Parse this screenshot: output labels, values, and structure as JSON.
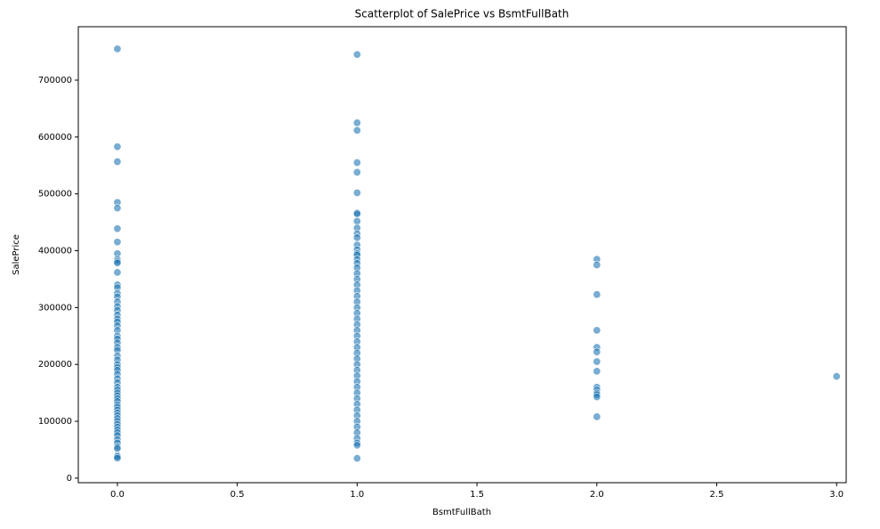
{
  "chart_data": {
    "type": "scatter",
    "title": "Scatterplot of SalePrice vs BsmtFullBath",
    "x_label": "BsmtFullBath",
    "y_label": "SalePrice",
    "color": "#1f77b4",
    "xlim": [
      -0.163,
      3.04
    ],
    "ylim": [
      -8000,
      794000
    ],
    "xticks": [
      {
        "value": 0,
        "label": "0.0"
      },
      {
        "value": 0.5,
        "label": "0.5"
      },
      {
        "value": 1,
        "label": "1.0"
      },
      {
        "value": 1.5,
        "label": "1.5"
      },
      {
        "value": 2,
        "label": "2.0"
      },
      {
        "value": 2.5,
        "label": "2.5"
      },
      {
        "value": 3,
        "label": "3.0"
      }
    ],
    "yticks": [
      0,
      100000,
      200000,
      300000,
      400000,
      500000,
      600000,
      700000
    ],
    "x": [
      0,
      0,
      0,
      0,
      0,
      0,
      0,
      0,
      0,
      0,
      0,
      0,
      0,
      0,
      0,
      0,
      0,
      0,
      0,
      0,
      0,
      0,
      0,
      0,
      0,
      0,
      0,
      0,
      0,
      0,
      0,
      0,
      0,
      0,
      0,
      0,
      0,
      0,
      0,
      0,
      0,
      0,
      0,
      0,
      0,
      0,
      0,
      0,
      0,
      0,
      0,
      0,
      0,
      0,
      0,
      0,
      0,
      0,
      0,
      0,
      0,
      0,
      1,
      1,
      1,
      1,
      1,
      1,
      1,
      1,
      1,
      1,
      1,
      1,
      1,
      1,
      1,
      1,
      1,
      1,
      1,
      1,
      1,
      1,
      1,
      1,
      1,
      1,
      1,
      1,
      1,
      1,
      1,
      1,
      1,
      1,
      1,
      1,
      1,
      1,
      1,
      1,
      1,
      1,
      1,
      1,
      1,
      1,
      1,
      1,
      1,
      1,
      1,
      1,
      2,
      2,
      2,
      2,
      2,
      2,
      2,
      2,
      2,
      2,
      2,
      2,
      2,
      2,
      3
    ],
    "values": [
      755000,
      582933,
      556581,
      485000,
      475000,
      438780,
      415298,
      395000,
      385000,
      381000,
      378500,
      361919,
      340000,
      335000,
      325000,
      319000,
      310000,
      302000,
      295000,
      287000,
      280000,
      275000,
      268000,
      260000,
      250000,
      245000,
      238000,
      230000,
      225000,
      215000,
      208000,
      200000,
      195000,
      190000,
      183000,
      175000,
      168000,
      160000,
      155000,
      150000,
      145000,
      140000,
      135000,
      129000,
      125000,
      120000,
      115000,
      110000,
      105000,
      100000,
      95000,
      90000,
      85000,
      80000,
      75000,
      68000,
      62000,
      55000,
      52000,
      40000,
      37900,
      35311,
      745000,
      625000,
      611657,
      555000,
      538000,
      501837,
      466500,
      465000,
      451950,
      440000,
      430000,
      423000,
      410000,
      402000,
      395000,
      392500,
      385000,
      378000,
      370000,
      360000,
      350000,
      340000,
      330000,
      320000,
      310000,
      300000,
      290000,
      280000,
      270000,
      260000,
      250000,
      240000,
      230000,
      220000,
      210000,
      200000,
      190000,
      180000,
      170000,
      160000,
      150000,
      140000,
      130000,
      120000,
      110000,
      100000,
      90000,
      80000,
      70000,
      62000,
      58000,
      34900,
      385000,
      375000,
      323000,
      260000,
      230000,
      222000,
      205000,
      188000,
      160000,
      155000,
      150000,
      147000,
      143000,
      108000,
      179000
    ]
  }
}
